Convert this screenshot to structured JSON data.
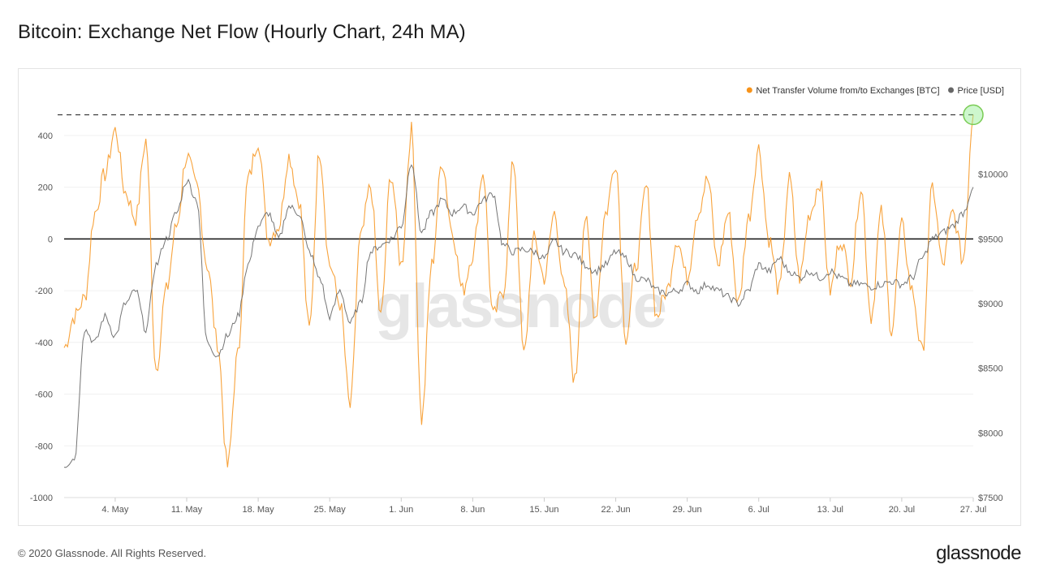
{
  "title": "Bitcoin: Exchange Net Flow (Hourly Chart, 24h MA)",
  "footer": {
    "copyright": "© 2020 Glassnode. All Rights Reserved.",
    "brand": "glassnode"
  },
  "watermark": "glassnode",
  "chart_data": {
    "type": "line",
    "title": "Bitcoin: Exchange Net Flow (Hourly Chart, 24h MA)",
    "legend_position": "top-right",
    "grid": true,
    "x_range": [
      "2020-04-29",
      "2020-07-27"
    ],
    "x_ticks": [
      {
        "date": "2020-05-04",
        "label": "4. May"
      },
      {
        "date": "2020-05-11",
        "label": "11. May"
      },
      {
        "date": "2020-05-18",
        "label": "18. May"
      },
      {
        "date": "2020-05-25",
        "label": "25. May"
      },
      {
        "date": "2020-06-01",
        "label": "1. Jun"
      },
      {
        "date": "2020-06-08",
        "label": "8. Jun"
      },
      {
        "date": "2020-06-15",
        "label": "15. Jun"
      },
      {
        "date": "2020-06-22",
        "label": "22. Jun"
      },
      {
        "date": "2020-06-29",
        "label": "29. Jun"
      },
      {
        "date": "2020-07-06",
        "label": "6. Jul"
      },
      {
        "date": "2020-07-13",
        "label": "13. Jul"
      },
      {
        "date": "2020-07-20",
        "label": "20. Jul"
      },
      {
        "date": "2020-07-27",
        "label": "27. Jul"
      }
    ],
    "y_left": {
      "ylim": [
        -1000,
        500
      ],
      "ticks": [
        400,
        200,
        0,
        -200,
        -400,
        -600,
        -800,
        -1000
      ],
      "tick_labels": [
        "400",
        "200",
        "0",
        "-200",
        "-400",
        "-600",
        "-800",
        "-1000"
      ]
    },
    "y_right": {
      "ylim": [
        7500,
        10500
      ],
      "ticks": [
        10000,
        9500,
        9000,
        8500,
        8000,
        7500
      ],
      "tick_labels": [
        "$10000",
        "$9500",
        "$9000",
        "$8500",
        "$8000",
        "$7500"
      ]
    },
    "reference_lines": [
      {
        "axis": "left",
        "value": 0,
        "style": "solid"
      },
      {
        "axis": "left",
        "value": 480,
        "style": "dashed"
      }
    ],
    "highlight_point": {
      "date": "2020-07-27",
      "value": 480
    },
    "series": [
      {
        "name": "Net Transfer Volume from/to Exchanges [BTC]",
        "axis": "left",
        "color": "#f7931a",
        "points": [
          [
            "2020-04-29",
            -420
          ],
          [
            "2020-04-30",
            -300
          ],
          [
            "2020-05-01",
            -230
          ],
          [
            "2020-05-02",
            100
          ],
          [
            "2020-05-03",
            250
          ],
          [
            "2020-05-04",
            420
          ],
          [
            "2020-05-05",
            180
          ],
          [
            "2020-05-06",
            80
          ],
          [
            "2020-05-07",
            380
          ],
          [
            "2020-05-08",
            -500
          ],
          [
            "2020-05-09",
            -200
          ],
          [
            "2020-05-10",
            50
          ],
          [
            "2020-05-11",
            320
          ],
          [
            "2020-05-12",
            200
          ],
          [
            "2020-05-13",
            -100
          ],
          [
            "2020-05-14",
            -400
          ],
          [
            "2020-05-15",
            -880
          ],
          [
            "2020-05-16",
            -450
          ],
          [
            "2020-05-17",
            230
          ],
          [
            "2020-05-18",
            380
          ],
          [
            "2020-05-19",
            0
          ],
          [
            "2020-05-20",
            50
          ],
          [
            "2020-05-21",
            320
          ],
          [
            "2020-05-22",
            150
          ],
          [
            "2020-05-23",
            -350
          ],
          [
            "2020-05-24",
            340
          ],
          [
            "2020-05-25",
            -100
          ],
          [
            "2020-05-26",
            -250
          ],
          [
            "2020-05-27",
            -650
          ],
          [
            "2020-05-28",
            0
          ],
          [
            "2020-05-29",
            200
          ],
          [
            "2020-05-30",
            -300
          ],
          [
            "2020-05-31",
            250
          ],
          [
            "2020-06-01",
            -100
          ],
          [
            "2020-06-02",
            420
          ],
          [
            "2020-06-03",
            -700
          ],
          [
            "2020-06-04",
            -100
          ],
          [
            "2020-06-05",
            300
          ],
          [
            "2020-06-06",
            30
          ],
          [
            "2020-06-07",
            -200
          ],
          [
            "2020-06-08",
            -60
          ],
          [
            "2020-06-09",
            260
          ],
          [
            "2020-06-10",
            -300
          ],
          [
            "2020-06-11",
            -200
          ],
          [
            "2020-06-12",
            300
          ],
          [
            "2020-06-13",
            -450
          ],
          [
            "2020-06-14",
            0
          ],
          [
            "2020-06-15",
            -150
          ],
          [
            "2020-06-16",
            100
          ],
          [
            "2020-06-17",
            -200
          ],
          [
            "2020-06-18",
            -550
          ],
          [
            "2020-06-19",
            80
          ],
          [
            "2020-06-20",
            -300
          ],
          [
            "2020-06-21",
            100
          ],
          [
            "2020-06-22",
            300
          ],
          [
            "2020-06-23",
            -380
          ],
          [
            "2020-06-24",
            -100
          ],
          [
            "2020-06-25",
            200
          ],
          [
            "2020-06-26",
            -300
          ],
          [
            "2020-06-27",
            -200
          ],
          [
            "2020-06-28",
            0
          ],
          [
            "2020-06-29",
            -150
          ],
          [
            "2020-06-30",
            100
          ],
          [
            "2020-07-01",
            230
          ],
          [
            "2020-07-02",
            -100
          ],
          [
            "2020-07-03",
            100
          ],
          [
            "2020-07-04",
            -250
          ],
          [
            "2020-07-05",
            80
          ],
          [
            "2020-07-06",
            350
          ],
          [
            "2020-07-07",
            0
          ],
          [
            "2020-07-08",
            -200
          ],
          [
            "2020-07-09",
            230
          ],
          [
            "2020-07-10",
            -150
          ],
          [
            "2020-07-11",
            100
          ],
          [
            "2020-07-12",
            220
          ],
          [
            "2020-07-13",
            -200
          ],
          [
            "2020-07-14",
            0
          ],
          [
            "2020-07-15",
            -150
          ],
          [
            "2020-07-16",
            200
          ],
          [
            "2020-07-17",
            -300
          ],
          [
            "2020-07-18",
            100
          ],
          [
            "2020-07-19",
            -350
          ],
          [
            "2020-07-20",
            50
          ],
          [
            "2020-07-21",
            -200
          ],
          [
            "2020-07-22",
            -440
          ],
          [
            "2020-07-23",
            200
          ],
          [
            "2020-07-24",
            -100
          ],
          [
            "2020-07-25",
            100
          ],
          [
            "2020-07-26",
            -80
          ],
          [
            "2020-07-27",
            480
          ]
        ]
      },
      {
        "name": "Price [USD]",
        "axis": "right",
        "color": "#666666",
        "points": [
          [
            "2020-04-29",
            7750
          ],
          [
            "2020-04-30",
            7800
          ],
          [
            "2020-05-01",
            8800
          ],
          [
            "2020-05-02",
            8700
          ],
          [
            "2020-05-03",
            8900
          ],
          [
            "2020-05-04",
            8750
          ],
          [
            "2020-05-05",
            9000
          ],
          [
            "2020-05-06",
            9100
          ],
          [
            "2020-05-07",
            8800
          ],
          [
            "2020-05-08",
            9300
          ],
          [
            "2020-05-09",
            9500
          ],
          [
            "2020-05-10",
            9700
          ],
          [
            "2020-05-11",
            9950
          ],
          [
            "2020-05-12",
            9800
          ],
          [
            "2020-05-13",
            8700
          ],
          [
            "2020-05-14",
            8600
          ],
          [
            "2020-05-15",
            8750
          ],
          [
            "2020-05-16",
            8900
          ],
          [
            "2020-05-17",
            9300
          ],
          [
            "2020-05-18",
            9600
          ],
          [
            "2020-05-19",
            9700
          ],
          [
            "2020-05-20",
            9500
          ],
          [
            "2020-05-21",
            9750
          ],
          [
            "2020-05-22",
            9700
          ],
          [
            "2020-05-23",
            9400
          ],
          [
            "2020-05-24",
            9200
          ],
          [
            "2020-05-25",
            8900
          ],
          [
            "2020-05-26",
            9100
          ],
          [
            "2020-05-27",
            8850
          ],
          [
            "2020-05-28",
            9000
          ],
          [
            "2020-05-29",
            9400
          ],
          [
            "2020-05-30",
            9450
          ],
          [
            "2020-05-31",
            9500
          ],
          [
            "2020-06-01",
            9600
          ],
          [
            "2020-06-02",
            10100
          ],
          [
            "2020-06-03",
            9550
          ],
          [
            "2020-06-04",
            9700
          ],
          [
            "2020-06-05",
            9800
          ],
          [
            "2020-06-06",
            9700
          ],
          [
            "2020-06-07",
            9750
          ],
          [
            "2020-06-08",
            9700
          ],
          [
            "2020-06-09",
            9800
          ],
          [
            "2020-06-10",
            9850
          ],
          [
            "2020-06-11",
            9450
          ],
          [
            "2020-06-12",
            9400
          ],
          [
            "2020-06-13",
            9420
          ],
          [
            "2020-06-14",
            9400
          ],
          [
            "2020-06-15",
            9350
          ],
          [
            "2020-06-16",
            9480
          ],
          [
            "2020-06-17",
            9400
          ],
          [
            "2020-06-18",
            9380
          ],
          [
            "2020-06-19",
            9300
          ],
          [
            "2020-06-20",
            9250
          ],
          [
            "2020-06-21",
            9300
          ],
          [
            "2020-06-22",
            9400
          ],
          [
            "2020-06-23",
            9350
          ],
          [
            "2020-06-24",
            9200
          ],
          [
            "2020-06-25",
            9180
          ],
          [
            "2020-06-26",
            9100
          ],
          [
            "2020-06-27",
            9080
          ],
          [
            "2020-06-28",
            9100
          ],
          [
            "2020-06-29",
            9150
          ],
          [
            "2020-06-30",
            9100
          ],
          [
            "2020-07-01",
            9150
          ],
          [
            "2020-07-02",
            9100
          ],
          [
            "2020-07-03",
            9050
          ],
          [
            "2020-07-04",
            9000
          ],
          [
            "2020-07-05",
            9100
          ],
          [
            "2020-07-06",
            9300
          ],
          [
            "2020-07-07",
            9250
          ],
          [
            "2020-07-08",
            9350
          ],
          [
            "2020-07-09",
            9250
          ],
          [
            "2020-07-10",
            9200
          ],
          [
            "2020-07-11",
            9250
          ],
          [
            "2020-07-12",
            9200
          ],
          [
            "2020-07-13",
            9250
          ],
          [
            "2020-07-14",
            9200
          ],
          [
            "2020-07-15",
            9150
          ],
          [
            "2020-07-16",
            9150
          ],
          [
            "2020-07-17",
            9130
          ],
          [
            "2020-07-18",
            9150
          ],
          [
            "2020-07-19",
            9170
          ],
          [
            "2020-07-20",
            9150
          ],
          [
            "2020-07-21",
            9200
          ],
          [
            "2020-07-22",
            9350
          ],
          [
            "2020-07-23",
            9500
          ],
          [
            "2020-07-24",
            9550
          ],
          [
            "2020-07-25",
            9600
          ],
          [
            "2020-07-26",
            9700
          ],
          [
            "2020-07-27",
            9900
          ]
        ]
      }
    ]
  }
}
